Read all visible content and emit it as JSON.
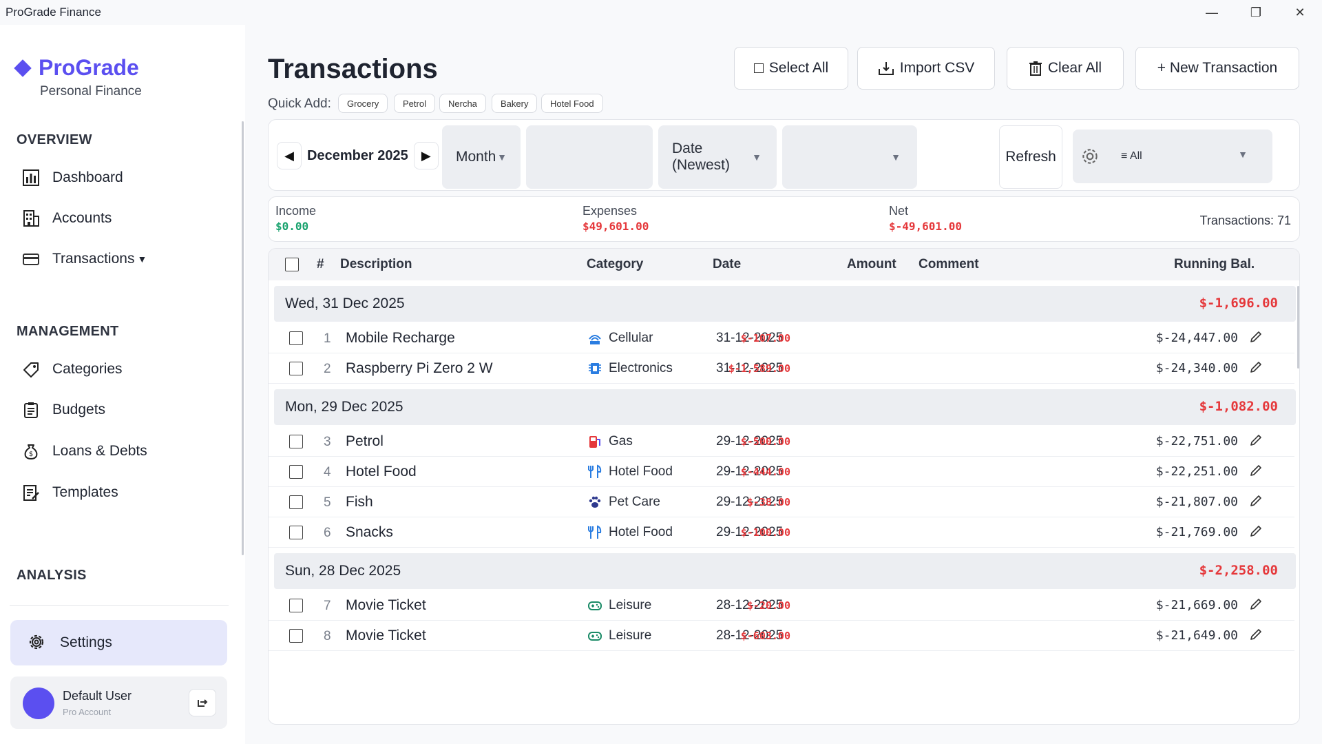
{
  "window": {
    "title": "ProGrade Finance",
    "min": "—",
    "max": "❐",
    "close": "✕"
  },
  "sidebar": {
    "brand_name": "ProGrade",
    "brand_sub": "Personal Finance",
    "sections": {
      "overview": "OVERVIEW",
      "management": "MANAGEMENT",
      "analysis": "ANALYSIS"
    },
    "items": [
      {
        "label": "Dashboard",
        "icon": "bar-chart-icon"
      },
      {
        "label": "Accounts",
        "icon": "building-icon"
      },
      {
        "label": "Transactions",
        "icon": "card-icon"
      },
      {
        "label": "Categories",
        "icon": "tag-icon"
      },
      {
        "label": "Budgets",
        "icon": "clipboard-icon"
      },
      {
        "label": "Loans & Debts",
        "icon": "money-bag-icon"
      },
      {
        "label": "Templates",
        "icon": "document-edit-icon"
      }
    ],
    "settings_label": "Settings",
    "user": {
      "name": "Default User",
      "role": "Pro Account"
    }
  },
  "main": {
    "title": "Transactions",
    "quick_add_label": "Quick Add:",
    "quick_add": [
      "Grocery",
      "Petrol",
      "Nercha",
      "Bakery",
      "Hotel Food"
    ],
    "toolbar": {
      "select_all": "Select All",
      "import_csv": "Import CSV",
      "clear_all": "Clear All",
      "new_transaction": "+ New Transaction"
    },
    "filters": {
      "month": "December 2025",
      "period": "Month",
      "search_value": "",
      "sort": "Date (Newest)",
      "category_value": "",
      "refresh": "Refresh",
      "account": "≡ All"
    },
    "summary": {
      "income_label": "Income",
      "income": "$0.00",
      "expenses_label": "Expenses",
      "expenses": "$49,601.00",
      "net_label": "Net",
      "net": "$-49,601.00",
      "count": "Transactions: 71"
    },
    "columns": {
      "num": "#",
      "description": "Description",
      "category": "Category",
      "date": "Date",
      "amount": "Amount",
      "comment": "Comment",
      "running": "Running Bal."
    },
    "groups": [
      {
        "date": "Wed, 31 Dec 2025",
        "total": "$-1,696.00",
        "rows": [
          {
            "n": "1",
            "desc": "Mobile Recharge",
            "cat": "Cellular",
            "icon": "signal-icon",
            "date": "31-12-2025",
            "amt": "$-107.00",
            "bal": "$-24,447.00"
          },
          {
            "n": "2",
            "desc": "Raspberry Pi Zero 2 W",
            "cat": "Electronics",
            "icon": "chip-icon",
            "date": "31-12-2025",
            "amt": "$-1,589.00",
            "bal": "$-24,340.00"
          }
        ]
      },
      {
        "date": "Mon, 29 Dec 2025",
        "total": "$-1,082.00",
        "rows": [
          {
            "n": "3",
            "desc": "Petrol",
            "cat": "Gas",
            "icon": "fuel-icon",
            "date": "29-12-2025",
            "amt": "$-500.00",
            "bal": "$-22,751.00"
          },
          {
            "n": "4",
            "desc": "Hotel Food",
            "cat": "Hotel Food",
            "icon": "fork-knife-icon",
            "date": "29-12-2025",
            "amt": "$-444.00",
            "bal": "$-22,251.00"
          },
          {
            "n": "5",
            "desc": "Fish",
            "cat": "Pet Care",
            "icon": "paw-icon",
            "date": "29-12-2025",
            "amt": "$-38.00",
            "bal": "$-21,807.00"
          },
          {
            "n": "6",
            "desc": "Snacks",
            "cat": "Hotel Food",
            "icon": "fork-knife-icon",
            "date": "29-12-2025",
            "amt": "$-100.00",
            "bal": "$-21,769.00"
          }
        ]
      },
      {
        "date": "Sun, 28 Dec 2025",
        "total": "$-2,258.00",
        "rows": [
          {
            "n": "7",
            "desc": "Movie Ticket",
            "cat": "Leisure",
            "icon": "gamepad-icon",
            "date": "28-12-2025",
            "amt": "$-20.00",
            "bal": "$-21,669.00"
          },
          {
            "n": "8",
            "desc": "Movie Ticket",
            "cat": "Leisure",
            "icon": "gamepad-icon",
            "date": "28-12-2025",
            "amt": "$-603.00",
            "bal": "$-21,649.00"
          }
        ]
      }
    ]
  },
  "colors": {
    "accent": "#5b4ff0",
    "income": "#1aa36f",
    "expense": "#e5383b"
  }
}
